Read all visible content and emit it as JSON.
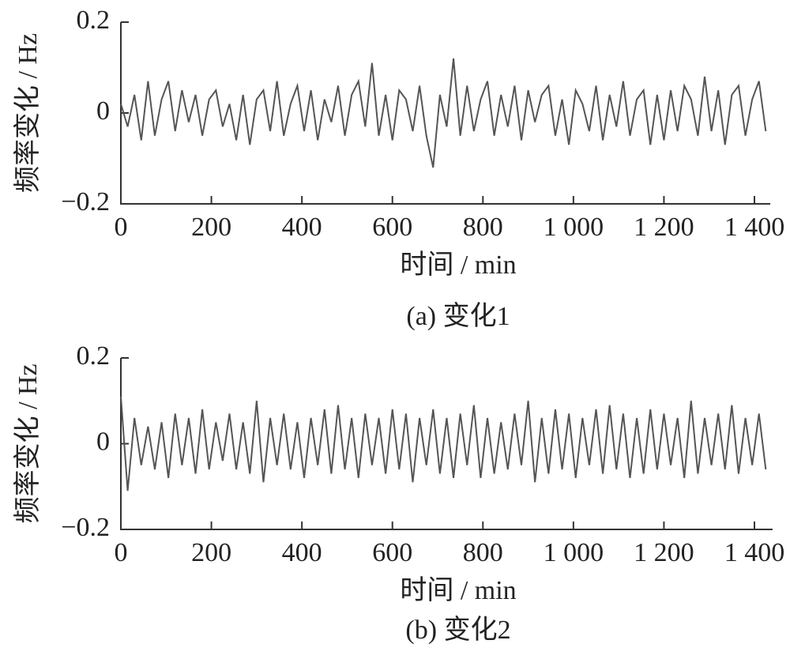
{
  "chart_data": [
    {
      "type": "line",
      "caption": "(a)  变化1",
      "x_label": "时间 / min",
      "y_label": "频率变化 / Hz",
      "color": "#555555",
      "xlim": [
        0,
        1435
      ],
      "ylim": [
        -0.2,
        0.2
      ],
      "xticks": [
        0,
        200,
        400,
        600,
        800,
        {
          "value": 1000,
          "label": "1 000"
        },
        {
          "value": 1200,
          "label": "1 200"
        },
        {
          "value": 1400,
          "label": "1 400"
        }
      ],
      "yticks": [
        {
          "value": -0.2,
          "label": "−0.2"
        },
        0,
        0.2
      ],
      "x": [
        0,
        15,
        30,
        45,
        60,
        75,
        90,
        105,
        120,
        135,
        150,
        165,
        180,
        195,
        210,
        225,
        240,
        255,
        270,
        285,
        300,
        315,
        330,
        345,
        360,
        375,
        390,
        405,
        420,
        435,
        450,
        465,
        480,
        495,
        510,
        525,
        540,
        555,
        570,
        585,
        600,
        615,
        630,
        645,
        660,
        675,
        690,
        705,
        720,
        735,
        750,
        765,
        780,
        795,
        810,
        825,
        840,
        855,
        870,
        885,
        900,
        915,
        930,
        945,
        960,
        975,
        990,
        1005,
        1020,
        1035,
        1050,
        1065,
        1080,
        1095,
        1110,
        1125,
        1140,
        1155,
        1170,
        1185,
        1200,
        1215,
        1230,
        1245,
        1260,
        1275,
        1290,
        1305,
        1320,
        1335,
        1350,
        1365,
        1380,
        1395,
        1410,
        1425
      ],
      "values": [
        0.02,
        -0.03,
        0.04,
        -0.06,
        0.07,
        -0.05,
        0.03,
        0.07,
        -0.04,
        0.05,
        -0.02,
        0.04,
        -0.05,
        0.03,
        0.05,
        -0.03,
        0.02,
        -0.06,
        0.04,
        -0.07,
        0.03,
        0.05,
        -0.04,
        0.07,
        -0.05,
        0.02,
        0.06,
        -0.04,
        0.05,
        -0.06,
        0.03,
        -0.02,
        0.06,
        -0.05,
        0.04,
        0.07,
        -0.03,
        0.11,
        -0.05,
        0.04,
        -0.06,
        0.05,
        0.03,
        -0.04,
        0.06,
        -0.05,
        -0.12,
        0.04,
        -0.03,
        0.12,
        -0.05,
        0.06,
        -0.04,
        0.03,
        0.07,
        -0.05,
        0.04,
        -0.03,
        0.06,
        -0.06,
        0.05,
        -0.02,
        0.04,
        0.06,
        -0.05,
        0.03,
        -0.07,
        0.05,
        0.02,
        -0.04,
        0.06,
        -0.06,
        0.04,
        -0.03,
        0.07,
        -0.05,
        0.03,
        0.05,
        -0.07,
        0.04,
        -0.06,
        0.05,
        -0.04,
        0.06,
        0.03,
        -0.05,
        0.08,
        -0.04,
        0.05,
        -0.07,
        0.04,
        0.06,
        -0.05,
        0.03,
        0.07,
        -0.04
      ]
    },
    {
      "type": "line",
      "caption": "(b)  变化2",
      "x_label": "时间 / min",
      "y_label": "频率变化 / Hz",
      "color": "#555555",
      "xlim": [
        0,
        1440
      ],
      "ylim": [
        -0.2,
        0.2
      ],
      "xticks": [
        0,
        200,
        400,
        600,
        800,
        {
          "value": 1000,
          "label": "1 000"
        },
        {
          "value": 1200,
          "label": "1 200"
        },
        {
          "value": 1400,
          "label": "1 400"
        }
      ],
      "yticks": [
        {
          "value": -0.2,
          "label": "−0.2"
        },
        0,
        0.2
      ],
      "x": [
        0,
        15,
        30,
        45,
        60,
        75,
        90,
        105,
        120,
        135,
        150,
        165,
        180,
        195,
        210,
        225,
        240,
        255,
        270,
        285,
        300,
        315,
        330,
        345,
        360,
        375,
        390,
        405,
        420,
        435,
        450,
        465,
        480,
        495,
        510,
        525,
        540,
        555,
        570,
        585,
        600,
        615,
        630,
        645,
        660,
        675,
        690,
        705,
        720,
        735,
        750,
        765,
        780,
        795,
        810,
        825,
        840,
        855,
        870,
        885,
        900,
        915,
        930,
        945,
        960,
        975,
        990,
        1005,
        1020,
        1035,
        1050,
        1065,
        1080,
        1095,
        1110,
        1125,
        1140,
        1155,
        1170,
        1185,
        1200,
        1215,
        1230,
        1245,
        1260,
        1275,
        1290,
        1305,
        1320,
        1335,
        1350,
        1365,
        1380,
        1395,
        1410,
        1425
      ],
      "values": [
        0.11,
        -0.11,
        0.06,
        -0.05,
        0.04,
        -0.06,
        0.05,
        -0.08,
        0.07,
        -0.05,
        0.06,
        -0.07,
        0.08,
        -0.06,
        0.05,
        -0.04,
        0.07,
        -0.06,
        0.05,
        -0.07,
        0.1,
        -0.09,
        0.06,
        -0.05,
        0.07,
        -0.06,
        0.05,
        -0.08,
        0.06,
        -0.05,
        0.08,
        -0.07,
        0.09,
        -0.06,
        0.06,
        -0.08,
        0.07,
        -0.05,
        0.06,
        -0.07,
        0.08,
        -0.06,
        0.07,
        -0.09,
        0.06,
        -0.05,
        0.08,
        -0.07,
        0.06,
        -0.08,
        0.07,
        -0.05,
        0.09,
        -0.08,
        0.06,
        -0.07,
        0.05,
        -0.06,
        0.07,
        -0.05,
        0.1,
        -0.09,
        0.06,
        -0.07,
        0.08,
        -0.06,
        0.07,
        -0.08,
        0.06,
        -0.05,
        0.08,
        -0.07,
        0.09,
        -0.06,
        0.07,
        -0.08,
        0.06,
        -0.07,
        0.08,
        -0.06,
        0.07,
        -0.05,
        0.06,
        -0.08,
        0.1,
        -0.07,
        0.06,
        -0.05,
        0.07,
        -0.06,
        0.09,
        -0.07,
        0.06,
        -0.05,
        0.07,
        -0.06
      ]
    }
  ]
}
